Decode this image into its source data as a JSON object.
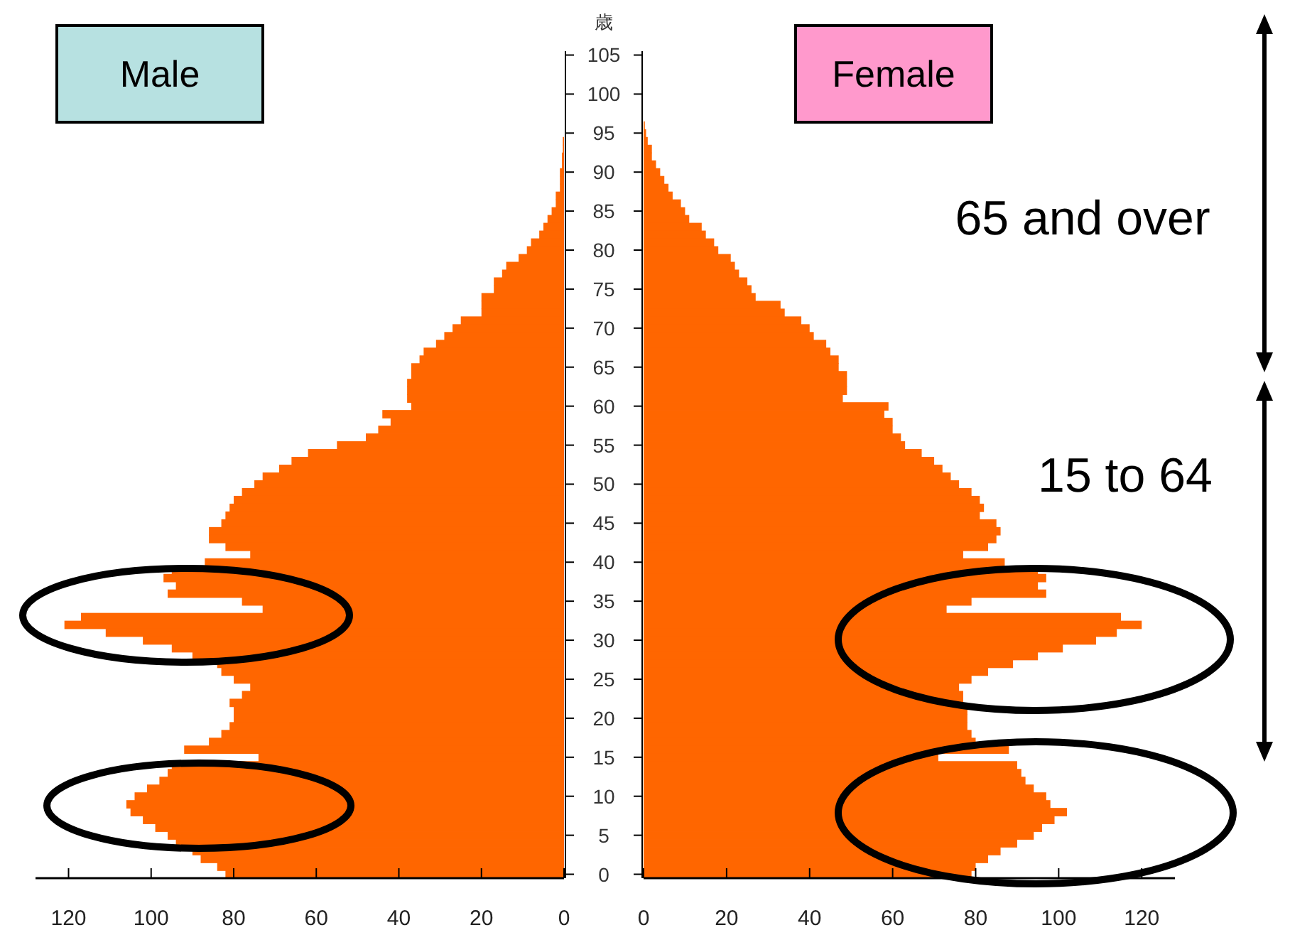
{
  "chart_data": [
    {
      "type": "bar",
      "orientation": "horizontal",
      "title": "Male",
      "ylabel": "歳",
      "color": "#ff6600",
      "categories": [
        "105",
        null,
        null,
        null,
        null,
        "100",
        null,
        null,
        null,
        null,
        "95",
        null,
        null,
        null,
        null,
        "90",
        null,
        null,
        null,
        null,
        "85",
        null,
        null,
        null,
        null,
        "80",
        null,
        null,
        null,
        null,
        "75",
        null,
        null,
        null,
        null,
        "70",
        null,
        null,
        null,
        null,
        "65",
        null,
        null,
        null,
        null,
        "60",
        null,
        null,
        null,
        null,
        "55",
        null,
        null,
        null,
        null,
        "50",
        null,
        null,
        null,
        null,
        "45",
        null,
        null,
        null,
        null,
        "40",
        null,
        null,
        null,
        null,
        "35",
        null,
        null,
        null,
        null,
        "30",
        null,
        null,
        null,
        null,
        "25",
        null,
        null,
        null,
        null,
        "20",
        null,
        null,
        null,
        null,
        "15",
        null,
        null,
        null,
        null,
        "10",
        null,
        null,
        null,
        null,
        "5",
        null,
        null,
        null,
        null,
        "0"
      ],
      "values": [
        0,
        0,
        0,
        0,
        0,
        0,
        0,
        0,
        0,
        0,
        0,
        0.3,
        0.3,
        0.5,
        0.5,
        1,
        1,
        1,
        2,
        2,
        3,
        4,
        5,
        6,
        8,
        9,
        11,
        14,
        15,
        17,
        17,
        20,
        20,
        20,
        25,
        27,
        29,
        31,
        34,
        35,
        37,
        37,
        38,
        38,
        38,
        37,
        44,
        42,
        45,
        48,
        55,
        62,
        66,
        69,
        73,
        75,
        78,
        80,
        81,
        82,
        83,
        86,
        86,
        82,
        76,
        87,
        95,
        97,
        94,
        96,
        78,
        73,
        117,
        121,
        111,
        102,
        95,
        90,
        84,
        83,
        80,
        76,
        78,
        81,
        80,
        80,
        81,
        83,
        86,
        92,
        74,
        95,
        96,
        98,
        101,
        104,
        106,
        105,
        102,
        99,
        96,
        94,
        90,
        88,
        84,
        82
      ],
      "xlim": [
        128,
        0
      ],
      "xticks": [
        120,
        100,
        80,
        60,
        40,
        20,
        0
      ]
    },
    {
      "type": "bar",
      "orientation": "horizontal",
      "title": "Female",
      "color": "#ff6600",
      "tick_labels": "x",
      "categories": [
        "105",
        null,
        null,
        null,
        null,
        "100",
        null,
        null,
        null,
        null,
        "95",
        null,
        null,
        null,
        null,
        "90",
        null,
        null,
        null,
        null,
        "85",
        null,
        null,
        null,
        null,
        "80",
        null,
        null,
        null,
        null,
        "75",
        null,
        null,
        null,
        null,
        "70",
        null,
        null,
        null,
        null,
        "65",
        null,
        null,
        null,
        null,
        "60",
        null,
        null,
        null,
        null,
        "55",
        null,
        null,
        null,
        null,
        "50",
        null,
        null,
        null,
        null,
        "45",
        null,
        null,
        null,
        null,
        "40",
        null,
        null,
        null,
        null,
        "35",
        null,
        null,
        null,
        null,
        "30",
        null,
        null,
        null,
        null,
        "25",
        null,
        null,
        null,
        null,
        "20",
        null,
        null,
        null,
        null,
        "15",
        null,
        null,
        null,
        null,
        "10",
        null,
        null,
        null,
        null,
        "5",
        null,
        null,
        null,
        null,
        "0"
      ],
      "values": [
        0,
        0,
        0,
        0,
        0,
        0,
        0,
        0,
        0,
        0.3,
        0.6,
        1,
        2,
        2,
        3,
        4,
        5,
        6,
        7,
        9,
        10,
        11,
        14,
        15,
        17,
        18,
        21,
        22,
        23,
        25,
        26,
        27,
        33,
        34,
        38,
        40,
        41,
        44,
        45,
        47,
        47,
        49,
        49,
        49,
        48,
        59,
        58,
        60,
        60,
        62,
        63,
        67,
        70,
        72,
        74,
        76,
        79,
        81,
        82,
        81,
        85,
        86,
        85,
        83,
        77,
        87,
        95,
        97,
        95,
        97,
        79,
        73,
        115,
        120,
        114,
        109,
        101,
        95,
        89,
        83,
        79,
        76,
        77,
        77,
        78,
        78,
        78,
        79,
        80,
        88,
        71,
        90,
        91,
        92,
        94,
        97,
        98,
        102,
        99,
        96,
        94,
        90,
        86,
        83,
        80,
        79
      ],
      "xlim": [
        0,
        128
      ],
      "xticks": [
        0,
        20,
        40,
        60,
        80,
        100,
        120
      ],
      "annotations": [
        "65 and over",
        "15 to 64"
      ]
    }
  ]
}
